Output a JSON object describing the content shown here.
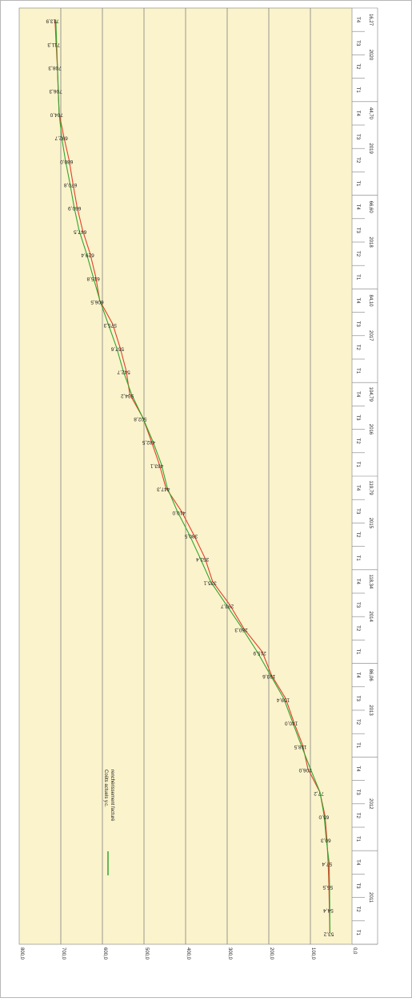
{
  "chart_data": {
    "type": "line",
    "orientation": "rotated-90-clockwise",
    "title": "",
    "xlabel": "",
    "ylabel": "",
    "ylim": [
      0,
      800
    ],
    "y_ticks": [
      "0,0",
      "100,0",
      "200,0",
      "300,0",
      "400,0",
      "500,0",
      "600,0",
      "700,0",
      "800,0"
    ],
    "grid": true,
    "background_color": "#fbf3cb",
    "quarters": [
      "T1",
      "T2",
      "T3",
      "T4",
      "T1",
      "T2",
      "T3",
      "T4",
      "T1",
      "T2",
      "T3",
      "T4",
      "T1",
      "T2",
      "T3",
      "T4",
      "T1",
      "T2",
      "T3",
      "T4",
      "T1",
      "T2",
      "T3",
      "T4",
      "T1",
      "T2",
      "T3",
      "T4",
      "T1",
      "T2",
      "T3",
      "T4",
      "T1",
      "T2",
      "T3",
      "T4",
      "T1",
      "T2",
      "T3",
      "T4"
    ],
    "years": [
      "2011",
      "2012",
      "2013",
      "2014",
      "2015",
      "2016",
      "2017",
      "2018",
      "2019",
      "2020"
    ],
    "year_totals": [
      "",
      "",
      "86,06",
      "118,34",
      "119,79",
      "104,79",
      "84,10",
      "66,60",
      "44,70",
      "16,27"
    ],
    "legend": {
      "position": "bottom-left",
      "label": "Coûts actuels y.c. renchérissement facturé"
    },
    "series": [
      {
        "color": "#e0402a",
        "values": [
          53.2,
          54.4,
          55.5,
          57.4,
          60.3,
          65.0,
          77.2,
          106.0,
          118.5,
          140.0,
          159.4,
          193.6,
          215.9,
          260.3,
          293.7,
          335.1,
          353.4,
          380.5,
          410.0,
          447.3,
          463.1,
          482.5,
          502.8,
          534.2,
          542.7,
          557.6,
          575.3,
          606.5,
          615.8,
          629.4,
          647.5,
          660.9,
          670.8,
          680.0,
          692.7,
          704.0,
          706.3,
          708.3,
          711.3,
          713.9
        ],
        "labels": [
          "53,2",
          "54,4",
          "55,5",
          "57,4",
          "60,3",
          "65,0",
          "77,2",
          "106,0",
          "118,5",
          "140,0",
          "159,4",
          "193,6",
          "215,9",
          "260,3",
          "293,7",
          "335,1",
          "353,4",
          "380,5",
          "410,0",
          "447,3",
          "463,1",
          "482,5",
          "502,8",
          "534,2",
          "542,7",
          "557,6",
          "575,3",
          "606,5",
          "615,8",
          "629,4",
          "647,5",
          "660,9",
          "670,8",
          "680,0",
          "692,7",
          "704,0",
          "706,3",
          "708,3",
          "711,3",
          "713,9"
        ]
      },
      {
        "name": "Coûts actuels y.c. renchérissement facturé",
        "color": "#33a532",
        "values": [
          53.2,
          53.5,
          54.0,
          55.0,
          62.0,
          67.0,
          77.0,
          100.0,
          122.0,
          143.0,
          164.0,
          196.0,
          228.0,
          264.0,
          302.0,
          340.0,
          365.0,
          391.0,
          420.0,
          444.0,
          458.0,
          479.0,
          503.0,
          530.0,
          550.0,
          566.0,
          586.0,
          606.0,
          622.0,
          638.0,
          656.0,
          668.0,
          678.0,
          689.0,
          698.0,
          704.0,
          706.0,
          708.0,
          710.0,
          712.0
        ]
      }
    ]
  }
}
